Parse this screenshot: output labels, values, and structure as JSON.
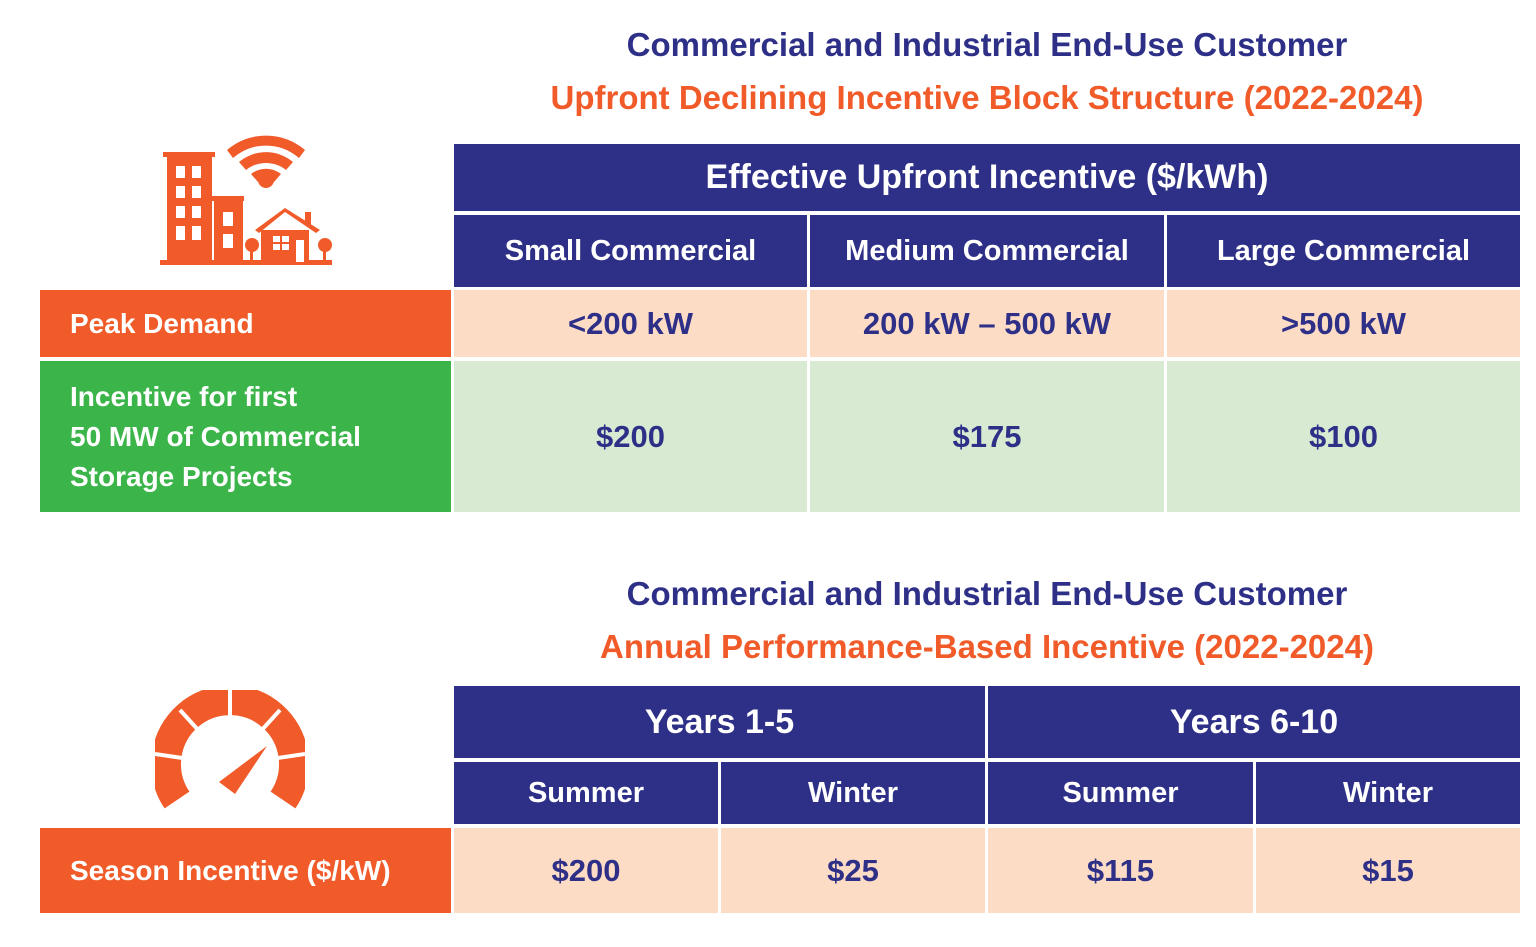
{
  "colors": {
    "navy": "#2e3088",
    "orange": "#f15a29",
    "green": "#3bb54a",
    "peach": "#fddcc6",
    "light_green": "#d9ead3"
  },
  "section1": {
    "title": "Commercial and Industrial End-Use Customer",
    "subtitle": "Upfront Declining Incentive Block Structure (2022-2024)",
    "icon": "buildings-wifi-icon",
    "header": "Effective Upfront Incentive ($/kWh)",
    "columns": [
      "Small Commercial",
      "Medium Commercial",
      "Large Commercial"
    ],
    "rows": [
      {
        "label": "Peak Demand",
        "values": [
          "<200 kW",
          "200 kW – 500 kW",
          ">500 kW"
        ]
      },
      {
        "label": "Incentive for first 50 MW of Commercial Storage Projects",
        "label_lines": [
          "Incentive for first",
          "50 MW of Commercial",
          "Storage Projects"
        ],
        "values": [
          "$200",
          "$175",
          "$100"
        ]
      }
    ]
  },
  "section2": {
    "title": "Commercial and Industrial End-Use Customer",
    "subtitle": "Annual Performance-Based Incentive (2022-2024)",
    "icon": "speedometer-icon",
    "groups": [
      "Years 1-5",
      "Years 6-10"
    ],
    "columns": [
      "Summer",
      "Winter",
      "Summer",
      "Winter"
    ],
    "row": {
      "label": "Season Incentive ($/kW)",
      "values": [
        "$200",
        "$25",
        "$115",
        "$15"
      ]
    }
  }
}
